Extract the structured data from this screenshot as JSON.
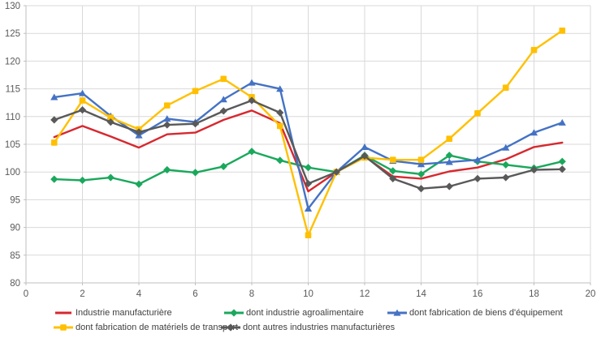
{
  "colors": {
    "grid": "#d9d9d9",
    "axis": "#bfbfbf",
    "tick_label": "#595959",
    "legend_text": "#404040",
    "background": "#ffffff"
  },
  "chart_data": {
    "type": "line",
    "title": "",
    "xlabel": "",
    "ylabel": "",
    "xlim": [
      0,
      20
    ],
    "ylim": [
      80,
      130
    ],
    "xticks": [
      0,
      2,
      4,
      6,
      8,
      10,
      12,
      14,
      16,
      18,
      20
    ],
    "yticks": [
      80,
      85,
      90,
      95,
      100,
      105,
      110,
      115,
      120,
      125,
      130
    ],
    "grid": true,
    "legend_position": "bottom",
    "x": [
      1,
      2,
      3,
      4,
      5,
      6,
      7,
      8,
      9,
      10,
      11,
      12,
      13,
      14,
      15,
      16,
      17,
      18,
      19
    ],
    "series": [
      {
        "name": "Industrie manufacturière",
        "color": "#d7282f",
        "marker": "none",
        "values": [
          106.3,
          108.3,
          106.4,
          104.4,
          106.8,
          107.1,
          109.4,
          111.1,
          108.8,
          96.5,
          100.0,
          102.8,
          99.2,
          98.8,
          100.1,
          100.8,
          102.3,
          104.5,
          105.3
        ]
      },
      {
        "name": "dont industrie agroalimentaire",
        "color": "#1aa85c",
        "marker": "diamond",
        "values": [
          98.7,
          98.5,
          99.0,
          97.8,
          100.4,
          99.9,
          101.0,
          103.7,
          102.1,
          100.8,
          100.0,
          103.0,
          100.2,
          99.6,
          103.0,
          101.9,
          101.3,
          100.7,
          101.9
        ]
      },
      {
        "name": "dont fabrication de biens d'équipement",
        "color": "#4472c4",
        "marker": "triangle",
        "values": [
          113.5,
          114.2,
          110.1,
          106.6,
          109.6,
          109.0,
          113.1,
          116.1,
          115.0,
          93.4,
          100.0,
          104.5,
          102.0,
          101.4,
          101.8,
          102.2,
          104.4,
          107.1,
          108.9
        ]
      },
      {
        "name": "dont fabrication de matériels de transport",
        "color": "#ffc000",
        "marker": "square",
        "values": [
          105.3,
          112.9,
          109.8,
          107.7,
          112.0,
          114.6,
          116.8,
          113.5,
          108.3,
          88.6,
          100.0,
          102.6,
          102.2,
          102.2,
          106.0,
          110.6,
          115.2,
          122.0,
          125.5
        ]
      },
      {
        "name": "dont autres industries manufacturières",
        "color": "#595959",
        "marker": "diamond",
        "values": [
          109.4,
          111.2,
          109.0,
          107.2,
          108.5,
          108.7,
          111.0,
          112.9,
          110.7,
          97.9,
          100.0,
          102.9,
          98.8,
          97.0,
          97.4,
          98.8,
          99.0,
          100.4,
          100.5
        ]
      }
    ]
  }
}
